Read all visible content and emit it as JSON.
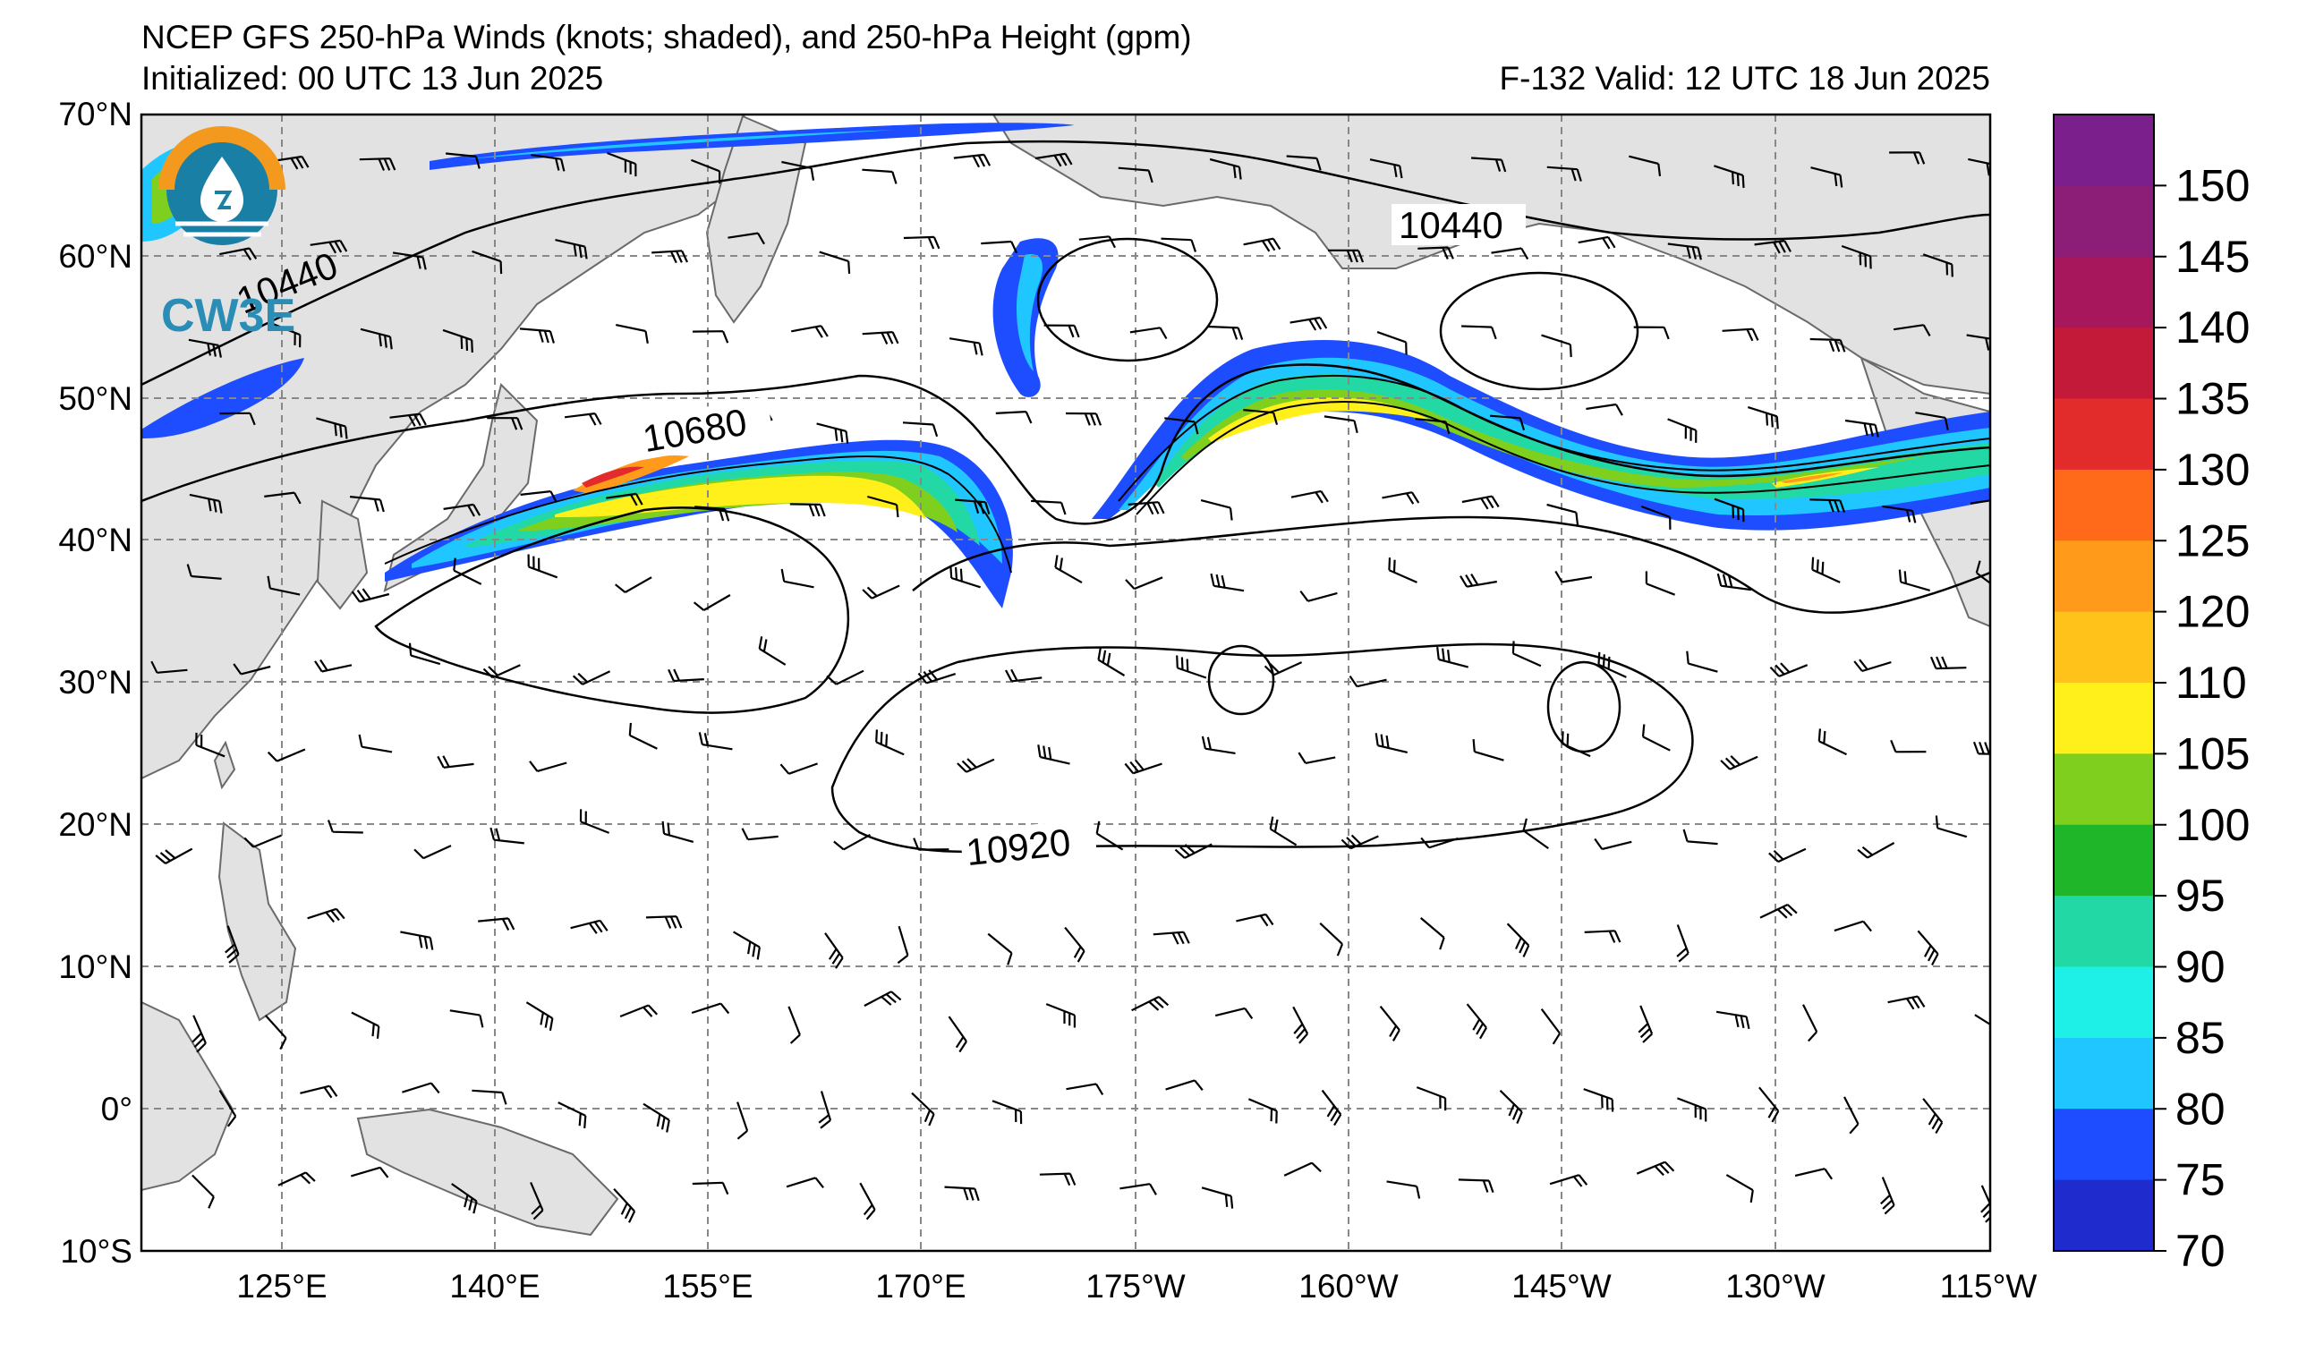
{
  "title": {
    "line1": "NCEP GFS 250-hPa Winds (knots; shaded), and 250-hPa Height (gpm)",
    "init": "Initialized: 00 UTC 13 Jun 2025",
    "valid": "F-132  Valid: 12 UTC 18 Jun 2025"
  },
  "logo": {
    "text": "CW3E",
    "icon": "water-drop-globe-icon"
  },
  "axes": {
    "lat_labels": [
      "70°N",
      "60°N",
      "50°N",
      "40°N",
      "30°N",
      "20°N",
      "10°N",
      "0°",
      "10°S"
    ],
    "lon_labels": [
      "125°E",
      "140°E",
      "155°E",
      "170°E",
      "175°W",
      "160°W",
      "145°W",
      "130°W",
      "115°W"
    ]
  },
  "contours": {
    "labels": [
      "10440",
      "10680",
      "10920",
      "10440"
    ]
  },
  "colorbar": {
    "ticks": [
      "150",
      "145",
      "140",
      "135",
      "130",
      "125",
      "120",
      "110",
      "105",
      "100",
      "95",
      "90",
      "85",
      "80",
      "75",
      "70"
    ],
    "colors": [
      "#7a1f8c",
      "#8c1e78",
      "#a6175c",
      "#c41a3a",
      "#e22b2b",
      "#ff6a1a",
      "#ff9a1a",
      "#ffc21a",
      "#ffef1a",
      "#7fcf1f",
      "#20b62a",
      "#22d9a5",
      "#1ef0e8",
      "#20c6ff",
      "#1e4dff",
      "#1f2bcc"
    ]
  },
  "colors": {
    "land": "#e2e2e2",
    "coast": "#6a6a6a",
    "grid": "#888888"
  }
}
